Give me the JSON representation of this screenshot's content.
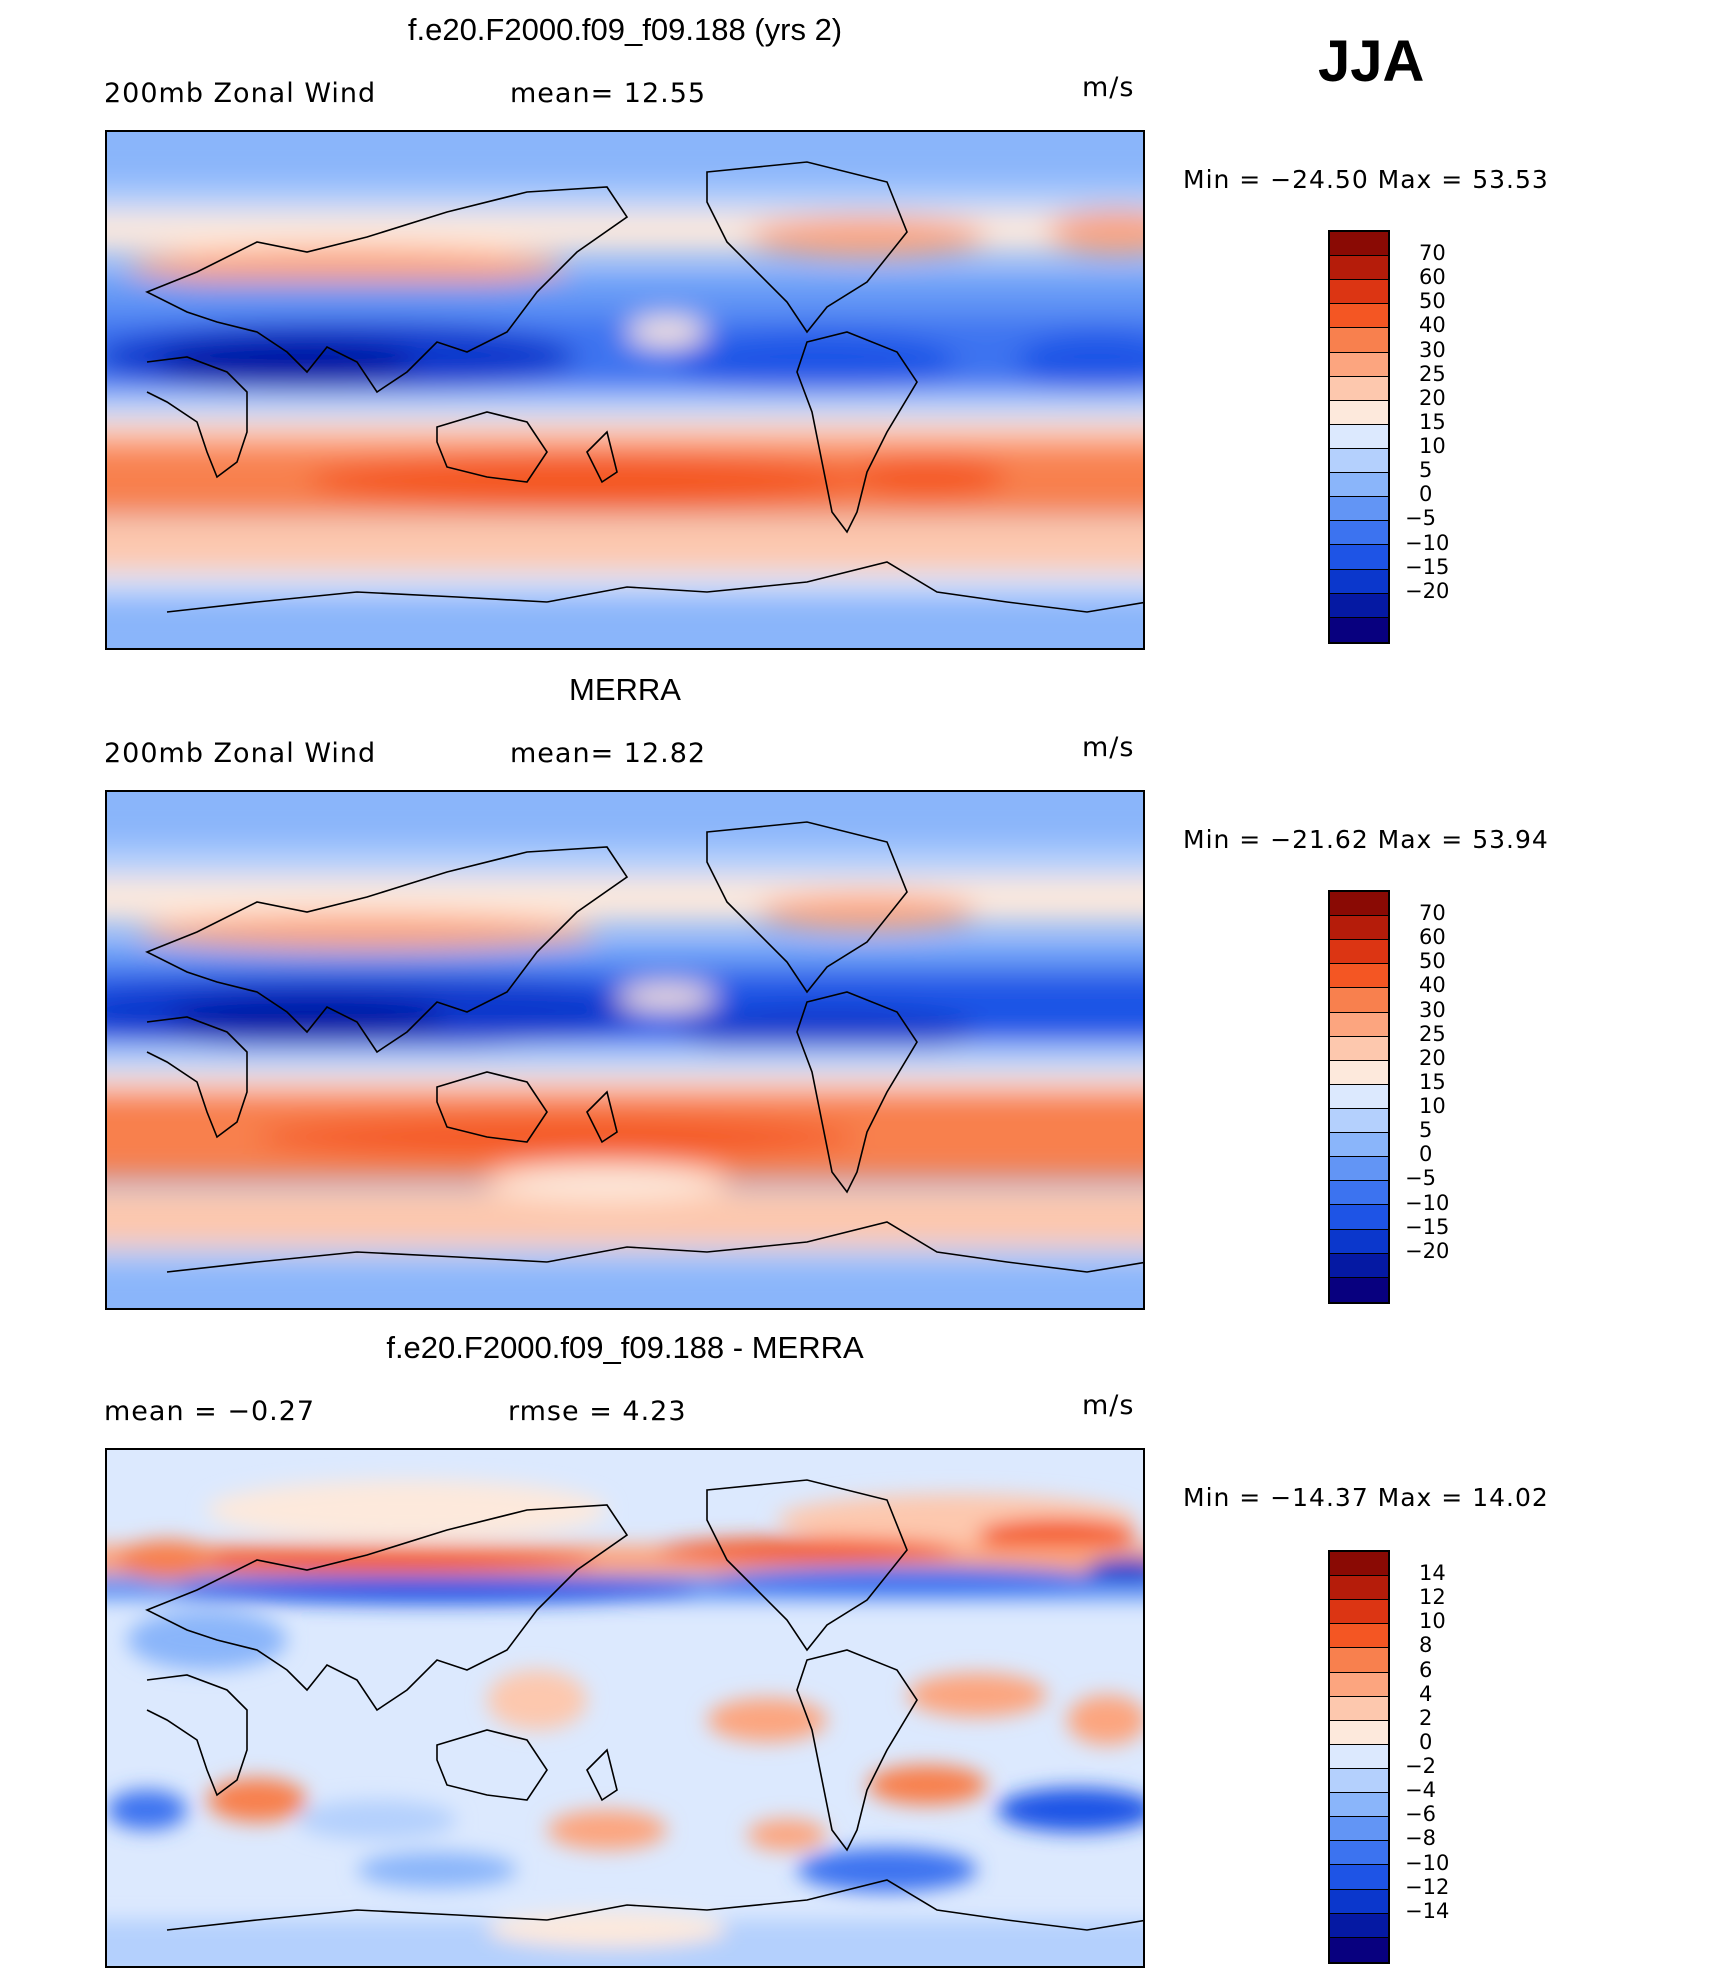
{
  "season": "JJA",
  "palette": {
    "wind": [
      "#08007f",
      "#0519a3",
      "#0b37cc",
      "#1e54e6",
      "#3c73f0",
      "#6295f5",
      "#8ab5fa",
      "#b4d0fd",
      "#dce9fe",
      "#fde9dc",
      "#fdc8ae",
      "#fca57f",
      "#f8804e",
      "#f45623",
      "#dc3513",
      "#b51c0a",
      "#8a0a04"
    ],
    "diff": [
      "#08007f",
      "#0519a3",
      "#0b37cc",
      "#1e54e6",
      "#3c73f0",
      "#6295f5",
      "#8ab5fa",
      "#b4d0fd",
      "#dce9fe",
      "#fde9dc",
      "#fdc8ae",
      "#fca57f",
      "#f8804e",
      "#f45623",
      "#dc3513",
      "#b51c0a",
      "#8a0a04"
    ]
  },
  "panels": [
    {
      "title": "f.e20.F2000.f09_f09.188 (yrs 2)",
      "left_label": "200mb  Zonal  Wind",
      "mid_label": "mean=   12.55",
      "units": "m/s",
      "minmax": "Min  =  −24.50  Max  =    53.53",
      "ticks": [
        "70",
        "60",
        "50",
        "40",
        "30",
        "25",
        "20",
        "15",
        "10",
        "5",
        "0",
        "−5",
        "−10",
        "−15",
        "−20"
      ],
      "map_icon": "world-map-zonal-wind-model"
    },
    {
      "title": "MERRA",
      "left_label": "200mb  Zonal  Wind",
      "mid_label": "mean=   12.82",
      "units": "m/s",
      "minmax": "Min  =  −21.62  Max  =    53.94",
      "ticks": [
        "70",
        "60",
        "50",
        "40",
        "30",
        "25",
        "20",
        "15",
        "10",
        "5",
        "0",
        "−5",
        "−10",
        "−15",
        "−20"
      ],
      "map_icon": "world-map-zonal-wind-merra"
    },
    {
      "title": "f.e20.F2000.f09_f09.188 - MERRA",
      "left_label": "mean  =     −0.27",
      "mid_label": "rmse  =      4.23",
      "units": "m/s",
      "minmax": "Min  =  −14.37  Max  =    14.02",
      "ticks": [
        "14",
        "12",
        "10",
        "8",
        "6",
        "4",
        "2",
        "0",
        "−2",
        "−4",
        "−6",
        "−8",
        "−10",
        "−12",
        "−14"
      ],
      "map_icon": "world-map-zonal-wind-difference"
    }
  ]
}
